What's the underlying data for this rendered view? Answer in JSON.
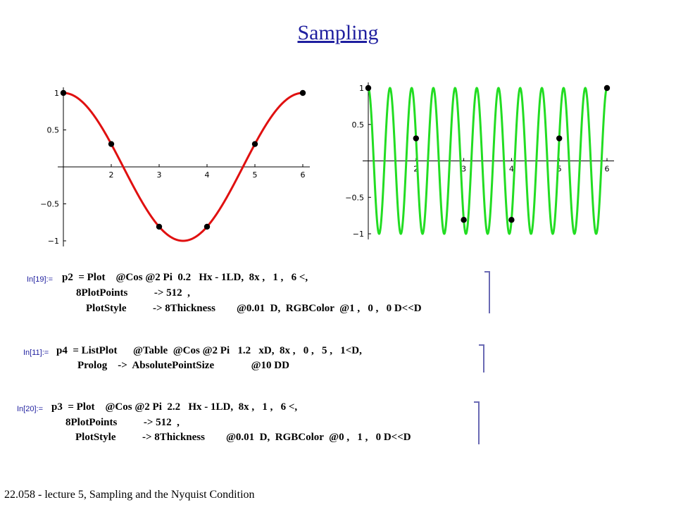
{
  "title": "Sampling",
  "footer": "22.058 - lecture 5, Sampling and the Nyquist Condition",
  "colors": {
    "left_curve": "#e01010",
    "right_curve": "#22dd22",
    "title": "#1f1f9f",
    "prompt": "#1f1f9f",
    "points": "#000000"
  },
  "chart_data": [
    {
      "type": "line",
      "title": "",
      "xlabel": "",
      "ylabel": "",
      "xlim": [
        1,
        6
      ],
      "ylim": [
        -1,
        1
      ],
      "grid": false,
      "x_ticks": [
        "2",
        "3",
        "4",
        "5",
        "6"
      ],
      "y_ticks": [
        "1",
        "0.5",
        "-0.5",
        "-1"
      ],
      "series": [
        {
          "function": "Cos[2 Pi 0.2 (x - 1)]",
          "frequency": 0.2,
          "color": "#e01010"
        }
      ],
      "sample_points": {
        "x": [
          1,
          2,
          3,
          4,
          5,
          6
        ],
        "y": [
          1,
          0.309,
          -0.809,
          -0.809,
          0.309,
          1
        ]
      }
    },
    {
      "type": "line",
      "title": "",
      "xlabel": "",
      "ylabel": "",
      "xlim": [
        1,
        6
      ],
      "ylim": [
        -1,
        1
      ],
      "grid": false,
      "x_ticks": [
        "2",
        "3",
        "4",
        "5",
        "6"
      ],
      "y_ticks": [
        "1",
        "0.5",
        "-0.5",
        "-1"
      ],
      "series": [
        {
          "function": "Cos[2 Pi 2.2 (x - 1)]",
          "frequency": 2.2,
          "color": "#22dd22"
        }
      ],
      "sample_points": {
        "x": [
          1,
          2,
          3,
          4,
          5,
          6
        ],
        "y": [
          1,
          0.309,
          -0.809,
          -0.809,
          0.309,
          1
        ]
      }
    }
  ],
  "code_cells": [
    {
      "prompt": "In[19]:=",
      "lines": [
        "p2  = Plot    @Cos @2 Pi  0.2   Hx - 1LD,  8x ,   1 ,   6 <,",
        "8PlotPoints          -> 512  ,",
        "PlotStyle          -> 8Thickness        @0.01  D,  RGBColor  @1 ,   0 ,   0 D<<D"
      ]
    },
    {
      "prompt": "In[11]:=",
      "lines": [
        "p4  = ListPlot      @Table  @Cos @2 Pi   1.2   xD,  8x ,   0 ,   5 ,   1<D,",
        "Prolog    ->  AbsolutePointSize              @10 DD"
      ]
    },
    {
      "prompt": "In[20]:=",
      "lines": [
        "p3  = Plot    @Cos @2 Pi  2.2   Hx - 1LD,  8x ,   1 ,   6 <,",
        "8PlotPoints          -> 512  ,",
        "PlotStyle          -> 8Thickness        @0.01  D,  RGBColor  @0 ,   1 ,   0 D<<D"
      ]
    }
  ]
}
